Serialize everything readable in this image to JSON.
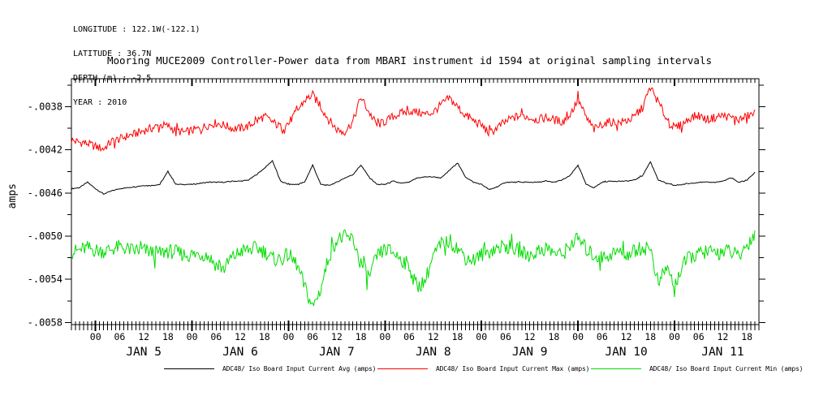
{
  "meta": {
    "lines": [
      "LONGITUDE : 122.1W(-122.1)",
      "LATITUDE : 36.7N",
      "DEPTH (m) : -2.5",
      "YEAR : 2010"
    ]
  },
  "title": "Mooring MUCE2009 Controller-Power data from MBARI instrument id 1594 at original sampling intervals",
  "chart_data": {
    "type": "line",
    "title": "Mooring MUCE2009 Controller-Power data from MBARI instrument id 1594 at original sampling intervals",
    "ylabel": "amps",
    "ylim": [
      -0.00582,
      -0.00354
    ],
    "y_major_ticks": [
      -0.0038,
      -0.0042,
      -0.0046,
      -0.005,
      -0.0054,
      -0.0058
    ],
    "y_tick_labels": [
      "-.0038",
      "-.0042",
      "-.0046",
      "-.0050",
      "-.0054",
      "-.0058"
    ],
    "y_minor_ticks": [
      -0.0036,
      -0.004,
      -0.0044,
      -0.0048,
      -0.0052,
      -0.0056
    ],
    "x_hours_total": 171,
    "x_day_boundary_hours": [
      6,
      30,
      54,
      78,
      102,
      126,
      150
    ],
    "x_day_labels": [
      "JAN 5",
      "JAN 6",
      "JAN 7",
      "JAN 8",
      "JAN 9",
      "JAN 10",
      "JAN 11"
    ],
    "x_hour_label_cycle": [
      "00",
      "06",
      "12",
      "18"
    ],
    "x_hour_label_step": 6,
    "grid": false,
    "legend_position": "bottom",
    "sample_interval_hours": 2,
    "series": [
      {
        "name": "ADC48/ Iso Board Input Current Avg (amps)",
        "color": "#000000",
        "noise_amp": 4e-06,
        "values": [
          -0.00456,
          -0.00455,
          -0.0045,
          -0.00456,
          -0.00461,
          -0.00458,
          -0.00456,
          -0.00455,
          -0.00454,
          -0.00453,
          -0.00453,
          -0.00452,
          -0.0044,
          -0.00452,
          -0.00452,
          -0.00452,
          -0.00451,
          -0.0045,
          -0.0045,
          -0.0045,
          -0.00449,
          -0.00449,
          -0.00448,
          -0.00443,
          -0.00437,
          -0.0043,
          -0.00449,
          -0.00452,
          -0.00452,
          -0.0045,
          -0.00434,
          -0.00452,
          -0.00453,
          -0.0045,
          -0.00446,
          -0.00443,
          -0.00434,
          -0.00445,
          -0.00452,
          -0.00452,
          -0.00449,
          -0.00451,
          -0.0045,
          -0.00446,
          -0.00445,
          -0.00445,
          -0.00446,
          -0.00439,
          -0.00432,
          -0.00445,
          -0.0045,
          -0.00452,
          -0.00457,
          -0.00454,
          -0.0045,
          -0.0045,
          -0.0045,
          -0.0045,
          -0.0045,
          -0.00449,
          -0.0045,
          -0.00448,
          -0.00444,
          -0.00434,
          -0.00452,
          -0.00455,
          -0.0045,
          -0.00449,
          -0.00449,
          -0.00449,
          -0.00448,
          -0.00444,
          -0.00431,
          -0.00448,
          -0.00451,
          -0.00453,
          -0.00452,
          -0.00451,
          -0.0045,
          -0.0045,
          -0.0045,
          -0.00449,
          -0.00446,
          -0.0045,
          -0.00448,
          -0.00441
        ]
      },
      {
        "name": "ADC48/ Iso Board Input Current Max (amps)",
        "color": "#ff0000",
        "noise_amp": 4e-05,
        "values": [
          -0.00411,
          -0.00413,
          -0.00414,
          -0.00417,
          -0.00419,
          -0.00412,
          -0.0041,
          -0.00407,
          -0.00405,
          -0.00402,
          -0.004,
          -0.00397,
          -0.00398,
          -0.00402,
          -0.00404,
          -0.00402,
          -0.004,
          -0.00397,
          -0.00395,
          -0.00397,
          -0.004,
          -0.004,
          -0.00398,
          -0.00393,
          -0.00389,
          -0.00394,
          -0.00399,
          -0.00395,
          -0.00385,
          -0.00374,
          -0.00369,
          -0.0038,
          -0.00392,
          -0.00401,
          -0.00403,
          -0.00394,
          -0.00371,
          -0.00385,
          -0.00397,
          -0.00394,
          -0.00389,
          -0.00386,
          -0.00384,
          -0.00385,
          -0.00387,
          -0.00385,
          -0.00378,
          -0.00372,
          -0.0038,
          -0.00388,
          -0.00393,
          -0.00397,
          -0.00405,
          -0.00399,
          -0.00394,
          -0.0039,
          -0.00388,
          -0.0039,
          -0.00392,
          -0.0039,
          -0.00392,
          -0.00394,
          -0.00387,
          -0.00373,
          -0.0039,
          -0.00401,
          -0.00396,
          -0.00394,
          -0.00395,
          -0.00393,
          -0.0039,
          -0.00381,
          -0.00362,
          -0.00376,
          -0.00391,
          -0.004,
          -0.00396,
          -0.0039,
          -0.00388,
          -0.00392,
          -0.0039,
          -0.00388,
          -0.0039,
          -0.00392,
          -0.00389,
          -0.00386
        ]
      },
      {
        "name": "ADC48/ Iso Board Input Current Min (amps)",
        "color": "#00dd00",
        "noise_amp": 7e-05,
        "values": [
          -0.00515,
          -0.00513,
          -0.00511,
          -0.00513,
          -0.00514,
          -0.00512,
          -0.0051,
          -0.00512,
          -0.00514,
          -0.00513,
          -0.00515,
          -0.00516,
          -0.00514,
          -0.00515,
          -0.00517,
          -0.00518,
          -0.00516,
          -0.00518,
          -0.00527,
          -0.0053,
          -0.0052,
          -0.00514,
          -0.00513,
          -0.00511,
          -0.00514,
          -0.00521,
          -0.00522,
          -0.00517,
          -0.00526,
          -0.00547,
          -0.00566,
          -0.00549,
          -0.00519,
          -0.00503,
          -0.00501,
          -0.00503,
          -0.00525,
          -0.00538,
          -0.00519,
          -0.00512,
          -0.00515,
          -0.00521,
          -0.00528,
          -0.00547,
          -0.00541,
          -0.00518,
          -0.00509,
          -0.00504,
          -0.00511,
          -0.0052,
          -0.00522,
          -0.00517,
          -0.00514,
          -0.00511,
          -0.00509,
          -0.00512,
          -0.00515,
          -0.00518,
          -0.00514,
          -0.00511,
          -0.00515,
          -0.00518,
          -0.00508,
          -0.00502,
          -0.00512,
          -0.00518,
          -0.0052,
          -0.00517,
          -0.00514,
          -0.00517,
          -0.00514,
          -0.00511,
          -0.00511,
          -0.00545,
          -0.00528,
          -0.00547,
          -0.00527,
          -0.00519,
          -0.00517,
          -0.00514,
          -0.00516,
          -0.00514,
          -0.00514,
          -0.0052,
          -0.00508,
          -0.00498
        ]
      }
    ]
  }
}
